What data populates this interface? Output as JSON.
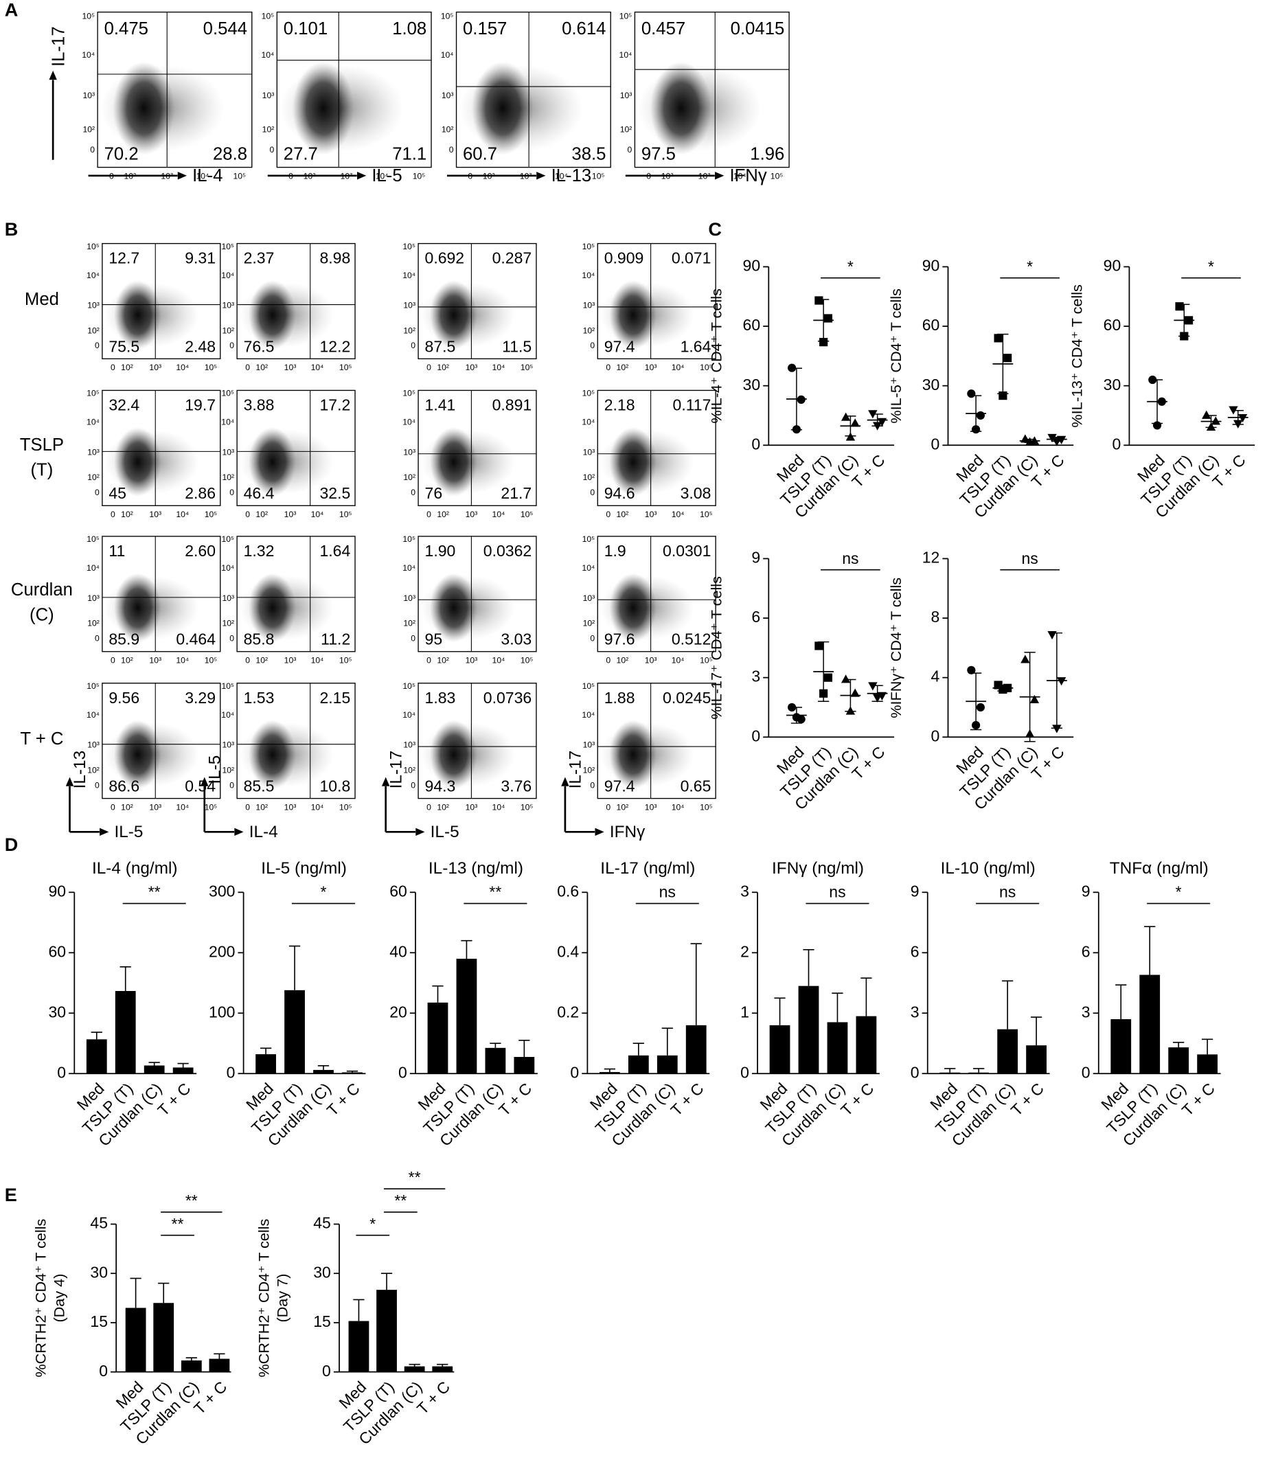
{
  "panel_letters": [
    "A",
    "B",
    "C",
    "D",
    "E"
  ],
  "flow_ticks": [
    "0",
    "10²",
    "10³",
    "10⁴",
    "10⁵"
  ],
  "flow_a": {
    "y_label": "IL-17",
    "plots": [
      {
        "x_label": "IL-4",
        "quadrants": [
          "0.475",
          "0.544",
          "70.2",
          "28.8"
        ]
      },
      {
        "x_label": "IL-5",
        "quadrants": [
          "0.101",
          "1.08",
          "27.7",
          "71.1"
        ]
      },
      {
        "x_label": "IL-13",
        "quadrants": [
          "0.157",
          "0.614",
          "60.7",
          "38.5"
        ]
      },
      {
        "x_label": "IFNγ",
        "quadrants": [
          "0.457",
          "0.0415",
          "97.5",
          "1.96"
        ]
      }
    ]
  },
  "flow_b": {
    "row_labels": [
      [
        "Med"
      ],
      [
        "TSLP",
        "(T)"
      ],
      [
        "Curdlan",
        "(C)"
      ],
      [
        "T + C"
      ]
    ],
    "columns": [
      {
        "y_label": "IL-13",
        "x_label": "IL-5"
      },
      {
        "y_label": "IL-5",
        "x_label": "IL-4"
      },
      {
        "y_label": "IL-17",
        "x_label": "IL-5"
      },
      {
        "y_label": "IL-17",
        "x_label": "IFNγ"
      }
    ],
    "plots": [
      [
        [
          "12.7",
          "9.31",
          "75.5",
          "2.48"
        ],
        [
          "2.37",
          "8.98",
          "76.5",
          "12.2"
        ],
        [
          "0.692",
          "0.287",
          "87.5",
          "11.5"
        ],
        [
          "0.909",
          "0.071",
          "97.4",
          "1.64"
        ]
      ],
      [
        [
          "32.4",
          "19.7",
          "45",
          "2.86"
        ],
        [
          "3.88",
          "17.2",
          "46.4",
          "32.5"
        ],
        [
          "1.41",
          "0.891",
          "76",
          "21.7"
        ],
        [
          "2.18",
          "0.117",
          "94.6",
          "3.08"
        ]
      ],
      [
        [
          "11",
          "2.60",
          "85.9",
          "0.464"
        ],
        [
          "1.32",
          "1.64",
          "85.8",
          "11.2"
        ],
        [
          "1.90",
          "0.0362",
          "95",
          "3.03"
        ],
        [
          "1.9",
          "0.0301",
          "97.6",
          "0.512"
        ]
      ],
      [
        [
          "9.56",
          "3.29",
          "86.6",
          "0.54"
        ],
        [
          "1.53",
          "2.15",
          "85.5",
          "10.8"
        ],
        [
          "1.83",
          "0.0736",
          "94.3",
          "3.76"
        ],
        [
          "1.88",
          "0.0245",
          "97.4",
          "0.65"
        ]
      ]
    ]
  },
  "chart_data": [
    {
      "type": "dotplot",
      "y_label": "%IL-4⁺ CD4⁺ T cells",
      "categories": [
        "Med",
        "TSLP (T)",
        "Curdlan (C)",
        "T + C"
      ],
      "points": [
        [
          39,
          23,
          8
        ],
        [
          73,
          64,
          52
        ],
        [
          14,
          11,
          4
        ],
        [
          16,
          12,
          10
        ]
      ],
      "means": [
        23.3,
        63,
        9.7,
        12.7
      ],
      "sd": [
        15.5,
        10.5,
        5,
        3
      ],
      "markers": [
        "circle",
        "square",
        "triangle-up",
        "triangle-down"
      ],
      "color": "#000000",
      "ylim": [
        0,
        90
      ],
      "yticks": [
        0,
        30,
        60,
        90
      ],
      "significance": [
        {
          "from": 1,
          "to": 3,
          "label": "*"
        }
      ]
    },
    {
      "type": "dotplot",
      "y_label": "%IL-5⁺ CD4⁺ T cells",
      "categories": [
        "Med",
        "TSLP (T)",
        "Curdlan (C)",
        "T + C"
      ],
      "points": [
        [
          26,
          15,
          8
        ],
        [
          54,
          44,
          25
        ],
        [
          3,
          2,
          1.5
        ],
        [
          4,
          3,
          2
        ]
      ],
      "means": [
        16,
        41,
        2.2,
        3
      ],
      "sd": [
        9,
        15,
        0.8,
        1
      ],
      "markers": [
        "circle",
        "square",
        "triangle-up",
        "triangle-down"
      ],
      "color": "#000000",
      "ylim": [
        0,
        90
      ],
      "yticks": [
        0,
        30,
        60,
        90
      ],
      "significance": [
        {
          "from": 1,
          "to": 3,
          "label": "*"
        }
      ]
    },
    {
      "type": "dotplot",
      "y_label": "%IL-13⁺ CD4⁺ T cells",
      "categories": [
        "Med",
        "TSLP (T)",
        "Curdlan (C)",
        "T + C"
      ],
      "points": [
        [
          33,
          22,
          10
        ],
        [
          70,
          63,
          55
        ],
        [
          15,
          12,
          9
        ],
        [
          18,
          14,
          11
        ]
      ],
      "means": [
        22,
        63,
        12,
        14
      ],
      "sd": [
        11,
        8,
        3,
        3.5
      ],
      "markers": [
        "circle",
        "square",
        "triangle-up",
        "triangle-down"
      ],
      "color": "#000000",
      "ylim": [
        0,
        90
      ],
      "yticks": [
        0,
        30,
        60,
        90
      ],
      "significance": [
        {
          "from": 1,
          "to": 3,
          "label": "*"
        }
      ]
    },
    {
      "type": "dotplot",
      "y_label": "%IL-17⁺ CD4⁺ T cells",
      "categories": [
        "Med",
        "TSLP (T)",
        "Curdlan (C)",
        "T + C"
      ],
      "points": [
        [
          1.5,
          0.9,
          1.0
        ],
        [
          4.6,
          3.0,
          2.2
        ],
        [
          2.9,
          2.2,
          1.3
        ],
        [
          2.6,
          2.1,
          2.0
        ]
      ],
      "means": [
        1.1,
        3.3,
        2.1,
        2.2
      ],
      "sd": [
        0.4,
        1.5,
        0.8,
        0.4
      ],
      "markers": [
        "circle",
        "square",
        "triangle-up",
        "triangle-down"
      ],
      "color": "#000000",
      "ylim": [
        0,
        9
      ],
      "yticks": [
        0,
        3,
        6,
        9
      ],
      "significance": [
        {
          "from": 1,
          "to": 3,
          "label": "ns"
        }
      ]
    },
    {
      "type": "dotplot",
      "y_label": "%IFNγ⁺ CD4⁺ T cells",
      "categories": [
        "Med",
        "TSLP (T)",
        "Curdlan (C)",
        "T + C"
      ],
      "points": [
        [
          4.5,
          2.0,
          0.8
        ],
        [
          3.5,
          3.3,
          3.2
        ],
        [
          5.2,
          2.5,
          0.2
        ],
        [
          6.9,
          3.8,
          0.6
        ]
      ],
      "means": [
        2.4,
        3.3,
        2.7,
        3.8
      ],
      "sd": [
        1.9,
        0.2,
        3.0,
        3.2
      ],
      "markers": [
        "circle",
        "square",
        "triangle-up",
        "triangle-down"
      ],
      "color": "#000000",
      "ylim": [
        0,
        12
      ],
      "yticks": [
        0,
        4,
        8,
        12
      ],
      "significance": [
        {
          "from": 1,
          "to": 3,
          "label": "ns"
        }
      ]
    },
    {
      "type": "bar",
      "title": "IL-4 (ng/ml)",
      "categories": [
        "Med",
        "TSLP (T)",
        "Curdlan (C)",
        "T + C"
      ],
      "values": [
        17,
        41,
        4,
        3
      ],
      "errors": [
        3.5,
        12,
        1.5,
        2
      ],
      "color": "#000000",
      "ylim": [
        0,
        90
      ],
      "yticks": [
        0,
        30,
        60,
        90
      ],
      "significance": [
        {
          "from": 1,
          "to": 3,
          "label": "**"
        }
      ]
    },
    {
      "type": "bar",
      "title": "IL-5 (ng/ml)",
      "categories": [
        "Med",
        "TSLP (T)",
        "Curdlan (C)",
        "T + C"
      ],
      "values": [
        32,
        138,
        6,
        2
      ],
      "errors": [
        10,
        73,
        7,
        2
      ],
      "color": "#000000",
      "ylim": [
        0,
        300
      ],
      "yticks": [
        0,
        100,
        200,
        300
      ],
      "significance": [
        {
          "from": 1,
          "to": 3,
          "label": "*"
        }
      ]
    },
    {
      "type": "bar",
      "title": "IL-13 (ng/ml)",
      "categories": [
        "Med",
        "TSLP (T)",
        "Curdlan (C)",
        "T + C"
      ],
      "values": [
        23.5,
        38,
        8.5,
        5.5
      ],
      "errors": [
        5.5,
        6,
        1.5,
        5.5
      ],
      "color": "#000000",
      "ylim": [
        0,
        60
      ],
      "yticks": [
        0,
        20,
        40,
        60
      ],
      "significance": [
        {
          "from": 1,
          "to": 3,
          "label": "**"
        }
      ]
    },
    {
      "type": "bar",
      "title": "IL-17 (ng/ml)",
      "categories": [
        "Med",
        "TSLP (T)",
        "Curdlan (C)",
        "T + C"
      ],
      "values": [
        0.005,
        0.06,
        0.06,
        0.16
      ],
      "errors": [
        0.01,
        0.04,
        0.09,
        0.27
      ],
      "color": "#000000",
      "ylim": [
        0,
        0.6
      ],
      "yticks": [
        0,
        0.2,
        0.4,
        0.6
      ],
      "significance": [
        {
          "from": 1,
          "to": 3,
          "label": "ns"
        }
      ]
    },
    {
      "type": "bar",
      "title": "IFNγ (ng/ml)",
      "categories": [
        "Med",
        "TSLP (T)",
        "Curdlan (C)",
        "T + C"
      ],
      "values": [
        0.8,
        1.45,
        0.85,
        0.95
      ],
      "errors": [
        0.45,
        0.6,
        0.48,
        0.63
      ],
      "color": "#000000",
      "ylim": [
        0,
        3
      ],
      "yticks": [
        0,
        1,
        2,
        3
      ],
      "significance": [
        {
          "from": 1,
          "to": 3,
          "label": "ns"
        }
      ]
    },
    {
      "type": "bar",
      "title": "IL-10 (ng/ml)",
      "categories": [
        "Med",
        "TSLP (T)",
        "Curdlan (C)",
        "T + C"
      ],
      "values": [
        0.05,
        0.05,
        2.2,
        1.4
      ],
      "errors": [
        0.2,
        0.2,
        2.4,
        1.4
      ],
      "color": "#000000",
      "ylim": [
        0,
        9
      ],
      "yticks": [
        0,
        3,
        6,
        9
      ],
      "significance": [
        {
          "from": 1,
          "to": 3,
          "label": "ns"
        }
      ]
    },
    {
      "type": "bar",
      "title": "TNFα (ng/ml)",
      "categories": [
        "Med",
        "TSLP (T)",
        "Curdlan (C)",
        "T + C"
      ],
      "values": [
        2.7,
        4.9,
        1.3,
        0.95
      ],
      "errors": [
        1.7,
        2.4,
        0.25,
        0.75
      ],
      "color": "#000000",
      "ylim": [
        0,
        9
      ],
      "yticks": [
        0,
        3,
        6,
        9
      ],
      "significance": [
        {
          "from": 1,
          "to": 3,
          "label": "*"
        }
      ]
    },
    {
      "type": "bar",
      "y_label": [
        "%CRTH2⁺ CD4⁺ T cells",
        "(Day 4)"
      ],
      "categories": [
        "Med",
        "TSLP (T)",
        "Curdlan (C)",
        "T + C"
      ],
      "values": [
        19.5,
        21,
        3.5,
        4
      ],
      "errors": [
        9,
        6,
        0.8,
        1.5
      ],
      "color": "#000000",
      "ylim": [
        0,
        45
      ],
      "yticks": [
        0,
        15,
        30,
        45
      ],
      "significance": [
        {
          "from": 1,
          "to": 2,
          "label": "**"
        },
        {
          "from": 1,
          "to": 3,
          "label": "**"
        }
      ]
    },
    {
      "type": "bar",
      "y_label": [
        "%CRTH2⁺ CD4⁺ T cells",
        "(Day 7)"
      ],
      "categories": [
        "Med",
        "TSLP (T)",
        "Curdlan (C)",
        "T + C"
      ],
      "values": [
        15.5,
        25,
        1.7,
        1.7
      ],
      "errors": [
        6.5,
        5,
        0.6,
        0.6
      ],
      "color": "#000000",
      "ylim": [
        0,
        45
      ],
      "yticks": [
        0,
        15,
        30,
        45
      ],
      "significance": [
        {
          "from": 0,
          "to": 1,
          "label": "*"
        },
        {
          "from": 1,
          "to": 2,
          "label": "**"
        },
        {
          "from": 1,
          "to": 3,
          "label": "**"
        }
      ]
    }
  ]
}
